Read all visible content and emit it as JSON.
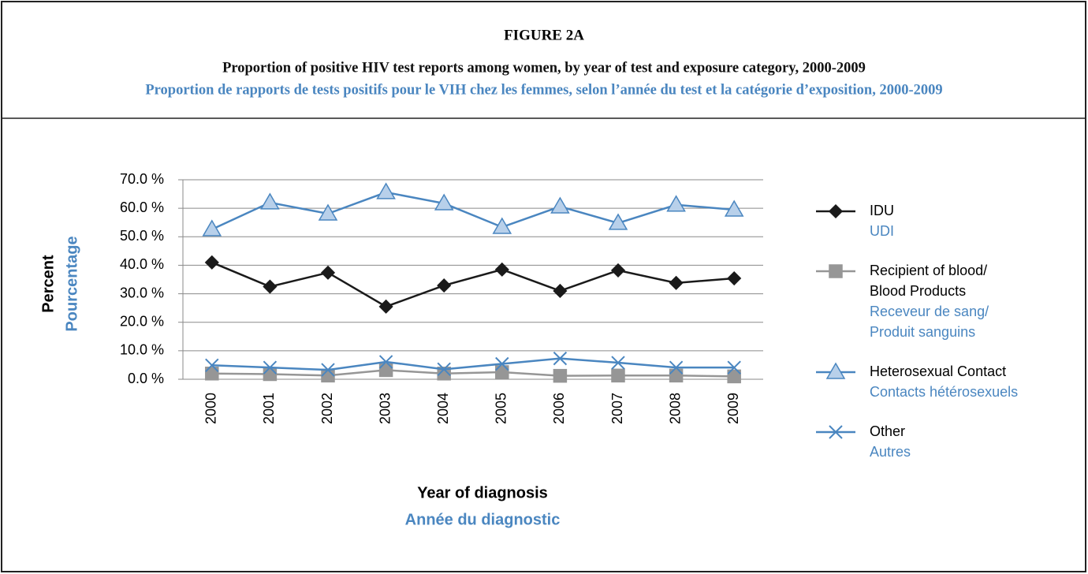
{
  "chart_data": {
    "type": "line",
    "title": "FIGURE 2A",
    "subtitle": "Proportion of positive HIV test reports among women, by year of test and exposure category, 2000-2009",
    "subtitle_fr": "Proportion de rapports de tests positifs pour le VIH chez les femmes, selon l’année du test et la catégorie d’exposition, 2000-2009",
    "x_label": "Year of diagnosis",
    "x_label_fr": "Année du diagnostic",
    "y_label": "Percent",
    "y_label_fr": "Pourcentage",
    "categories": [
      "2000",
      "2001",
      "2002",
      "2003",
      "2004",
      "2005",
      "2006",
      "2007",
      "2008",
      "2009"
    ],
    "ylim": [
      0,
      70
    ],
    "yticks": [
      {
        "value": 0,
        "label": "0.0 %"
      },
      {
        "value": 10,
        "label": "10.0 %"
      },
      {
        "value": 20,
        "label": "20.0 %"
      },
      {
        "value": 30,
        "label": "30.0 %"
      },
      {
        "value": 40,
        "label": "40.0 %"
      },
      {
        "value": 50,
        "label": "50.0 %"
      },
      {
        "value": 60,
        "label": "60.0 %"
      },
      {
        "value": 70,
        "label": "70.0 %"
      }
    ],
    "grid": true,
    "legend": "right",
    "series": [
      {
        "name": "IDU",
        "name_fr": "UDI",
        "color": "#1a1a1a",
        "fill": "#1a1a1a",
        "marker": "diamond",
        "values": [
          41.0,
          32.5,
          37.4,
          25.5,
          32.9,
          38.5,
          31.0,
          38.2,
          33.8,
          35.4
        ]
      },
      {
        "name": "Recipient of blood/ Blood Products",
        "name_fr": "Receveur de sang/ Produit sanguins",
        "color": "#969696",
        "fill": "#969696",
        "marker": "square",
        "values": [
          2.0,
          1.8,
          1.3,
          3.2,
          2.0,
          2.5,
          1.2,
          1.3,
          1.3,
          1.0
        ]
      },
      {
        "name": "Heterosexual Contact",
        "name_fr": "Contacts hétérosexuels",
        "color": "#4a86c0",
        "fill": "#b8d0ea",
        "marker": "triangle",
        "values": [
          52.6,
          62.0,
          58.1,
          65.6,
          61.7,
          53.4,
          60.6,
          54.8,
          61.2,
          59.5
        ]
      },
      {
        "name": "Other",
        "name_fr": "Autres",
        "color": "#4a86c0",
        "fill": "none",
        "marker": "x",
        "values": [
          4.9,
          4.1,
          3.3,
          6.1,
          3.5,
          5.4,
          7.3,
          5.8,
          4.1,
          4.1
        ]
      }
    ]
  }
}
